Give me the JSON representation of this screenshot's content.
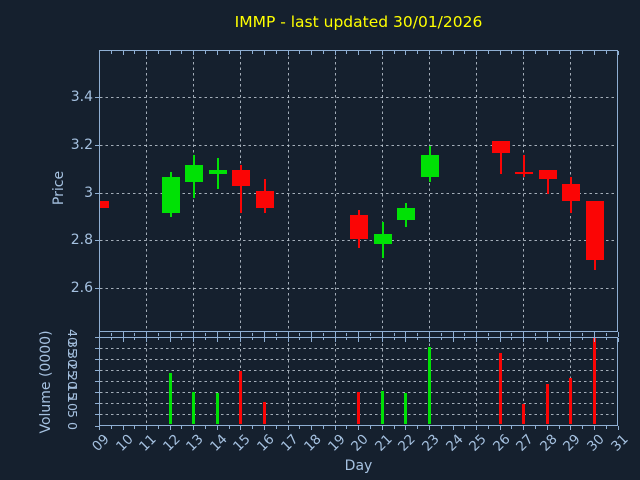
{
  "title": "IMMP - last updated 30/01/2026",
  "colors": {
    "background": "#15202e",
    "axis": "#8fafd3",
    "grid": "#c8d2dc",
    "text": "#a5c1e0",
    "title": "#ffff00",
    "up": "#00e105",
    "down": "#fb0505"
  },
  "price_axis": {
    "label": "Price",
    "tick_labels": [
      "3.4",
      "3.2",
      "3",
      "2.8",
      "2.6"
    ],
    "tick_values": [
      3.4,
      3.2,
      3.0,
      2.8,
      2.6
    ]
  },
  "volume_axis": {
    "label": "Volume (0000)",
    "tick_labels": [
      "40",
      "35",
      "30",
      "25",
      "20",
      "15",
      "10",
      "5",
      "0"
    ],
    "tick_values": [
      40,
      35,
      30,
      25,
      20,
      15,
      10,
      5,
      0
    ]
  },
  "x_axis": {
    "label": "Day",
    "tick_labels": [
      "09",
      "10",
      "11",
      "12",
      "13",
      "14",
      "15",
      "16",
      "17",
      "18",
      "19",
      "20",
      "21",
      "22",
      "23",
      "24",
      "25",
      "26",
      "27",
      "28",
      "29",
      "30",
      "31"
    ],
    "first_day": 9,
    "last_day": 31,
    "gridline_days": [
      11,
      13,
      15,
      17,
      19,
      21,
      23,
      25,
      27,
      29
    ]
  },
  "chart_data": [
    {
      "type": "candlestick",
      "title": "IMMP - last updated 30/01/2026",
      "xlabel": "Day",
      "ylabel": "Price",
      "ylim": [
        2.42,
        3.59
      ],
      "xlim_days": [
        9,
        31
      ],
      "yticks": [
        2.6,
        2.8,
        3.0,
        3.2,
        3.4
      ],
      "grid": true,
      "candles": [
        {
          "day": 9,
          "open": 2.97,
          "high": 2.97,
          "low": 2.94,
          "close": 2.94,
          "clipped_at_left_edge": true
        },
        {
          "day": 12,
          "open": 2.92,
          "high": 3.09,
          "low": 2.9,
          "close": 3.07
        },
        {
          "day": 13,
          "open": 3.05,
          "high": 3.16,
          "low": 2.98,
          "close": 3.12
        },
        {
          "day": 14,
          "open": 3.08,
          "high": 3.15,
          "low": 3.02,
          "close": 3.1
        },
        {
          "day": 15,
          "open": 3.1,
          "high": 3.12,
          "low": 2.92,
          "close": 3.03
        },
        {
          "day": 16,
          "open": 3.01,
          "high": 3.06,
          "low": 2.92,
          "close": 2.94
        },
        {
          "day": 20,
          "open": 2.91,
          "high": 2.93,
          "low": 2.77,
          "close": 2.81
        },
        {
          "day": 21,
          "open": 2.79,
          "high": 2.88,
          "low": 2.73,
          "close": 2.83
        },
        {
          "day": 22,
          "open": 2.89,
          "high": 2.96,
          "low": 2.86,
          "close": 2.94
        },
        {
          "day": 23,
          "open": 3.07,
          "high": 3.2,
          "low": 3.05,
          "close": 3.16
        },
        {
          "day": 26,
          "open": 3.22,
          "high": 3.22,
          "low": 3.08,
          "close": 3.17
        },
        {
          "day": 27,
          "open": 3.09,
          "high": 3.16,
          "low": 3.07,
          "close": 3.08
        },
        {
          "day": 28,
          "open": 3.1,
          "high": 3.1,
          "low": 3.0,
          "close": 3.06
        },
        {
          "day": 29,
          "open": 3.04,
          "high": 3.07,
          "low": 2.92,
          "close": 2.97
        },
        {
          "day": 30,
          "open": 2.97,
          "high": 2.97,
          "low": 2.68,
          "close": 2.72
        }
      ]
    },
    {
      "type": "bar",
      "ylabel": "Volume (0000)",
      "ylim": [
        0,
        40
      ],
      "yticks": [
        0,
        5,
        10,
        15,
        20,
        25,
        30,
        35,
        40
      ],
      "days": [
        12,
        13,
        14,
        15,
        16,
        20,
        21,
        22,
        23,
        26,
        27,
        28,
        29,
        30
      ],
      "values": [
        23,
        14.5,
        14,
        24,
        10,
        14.5,
        15,
        14,
        35,
        32,
        9,
        18,
        21,
        39
      ],
      "directions": [
        "up",
        "up",
        "up",
        "down",
        "down",
        "down",
        "up",
        "up",
        "up",
        "down",
        "down",
        "down",
        "down",
        "down"
      ]
    }
  ]
}
